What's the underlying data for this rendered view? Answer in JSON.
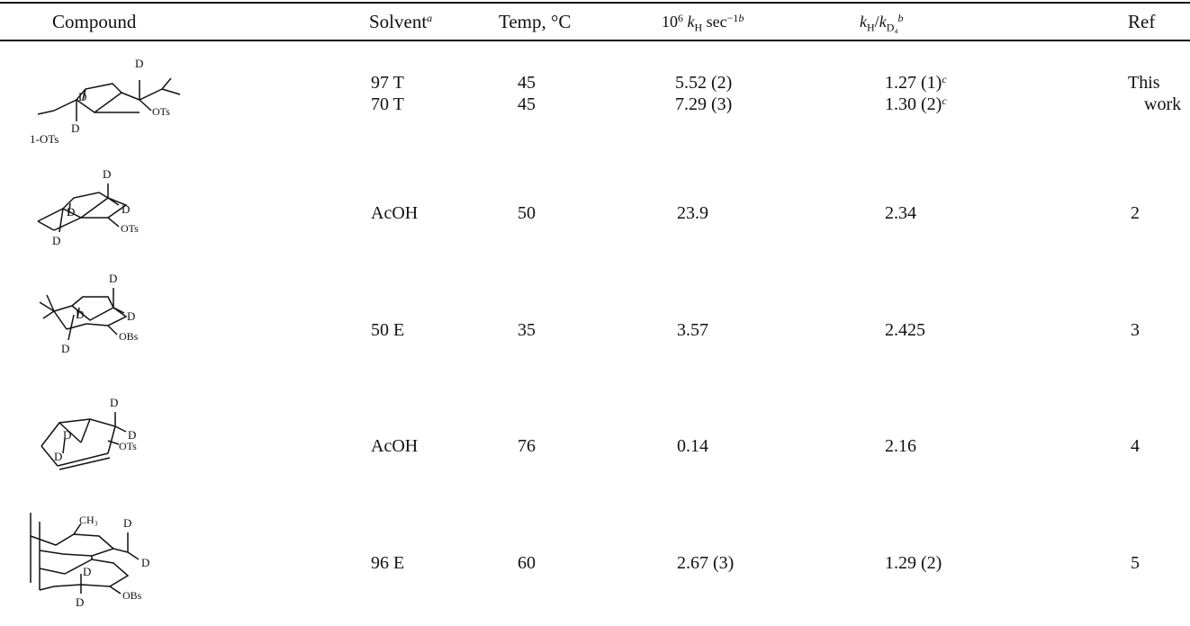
{
  "header": {
    "compound": "Compound",
    "solvent": "Solvent",
    "solvent_note": "a",
    "temp": "Temp, °C",
    "rate_prefix": "10",
    "rate_exp": "6",
    "rate_k": "k",
    "rate_sub": "H",
    "rate_unit": "sec",
    "rate_unit_exp": "−1",
    "rate_note": "b",
    "iso_k1": "k",
    "iso_sub1": "H",
    "iso_slash": "/",
    "iso_k2": "k",
    "iso_sub2": "D₄",
    "iso_note": "b",
    "ref": "Ref"
  },
  "rows": [
    {
      "compound_label": "1-OTs",
      "leaving_group": "OTs",
      "solvent_lines": [
        "97 T",
        "70 T"
      ],
      "temp_lines": [
        "45",
        "45"
      ],
      "rate_lines": [
        "5.52 (2)",
        "7.29 (3)"
      ],
      "iso_lines": [
        "1.27 (1)",
        "1.30 (2)"
      ],
      "iso_note": "c",
      "ref_lines": [
        "This",
        "work"
      ]
    },
    {
      "leaving_group": "OTs",
      "solvent": "AcOH",
      "temp": "50",
      "rate": "23.9",
      "iso": "2.34",
      "ref": "2"
    },
    {
      "leaving_group": "OBs",
      "solvent": "50 E",
      "temp": "35",
      "rate": "3.57",
      "iso": "2.425",
      "ref": "3"
    },
    {
      "leaving_group": "OTs",
      "solvent": "AcOH",
      "temp": "76",
      "rate": "0.14",
      "iso": "2.16",
      "ref": "4"
    },
    {
      "methyl_label": "CH₃",
      "leaving_group": "OBs",
      "solvent": "96 E",
      "temp": "60",
      "rate": "2.67 (3)",
      "iso": "1.29 (2)",
      "ref": "5"
    }
  ],
  "atom_label": "D"
}
